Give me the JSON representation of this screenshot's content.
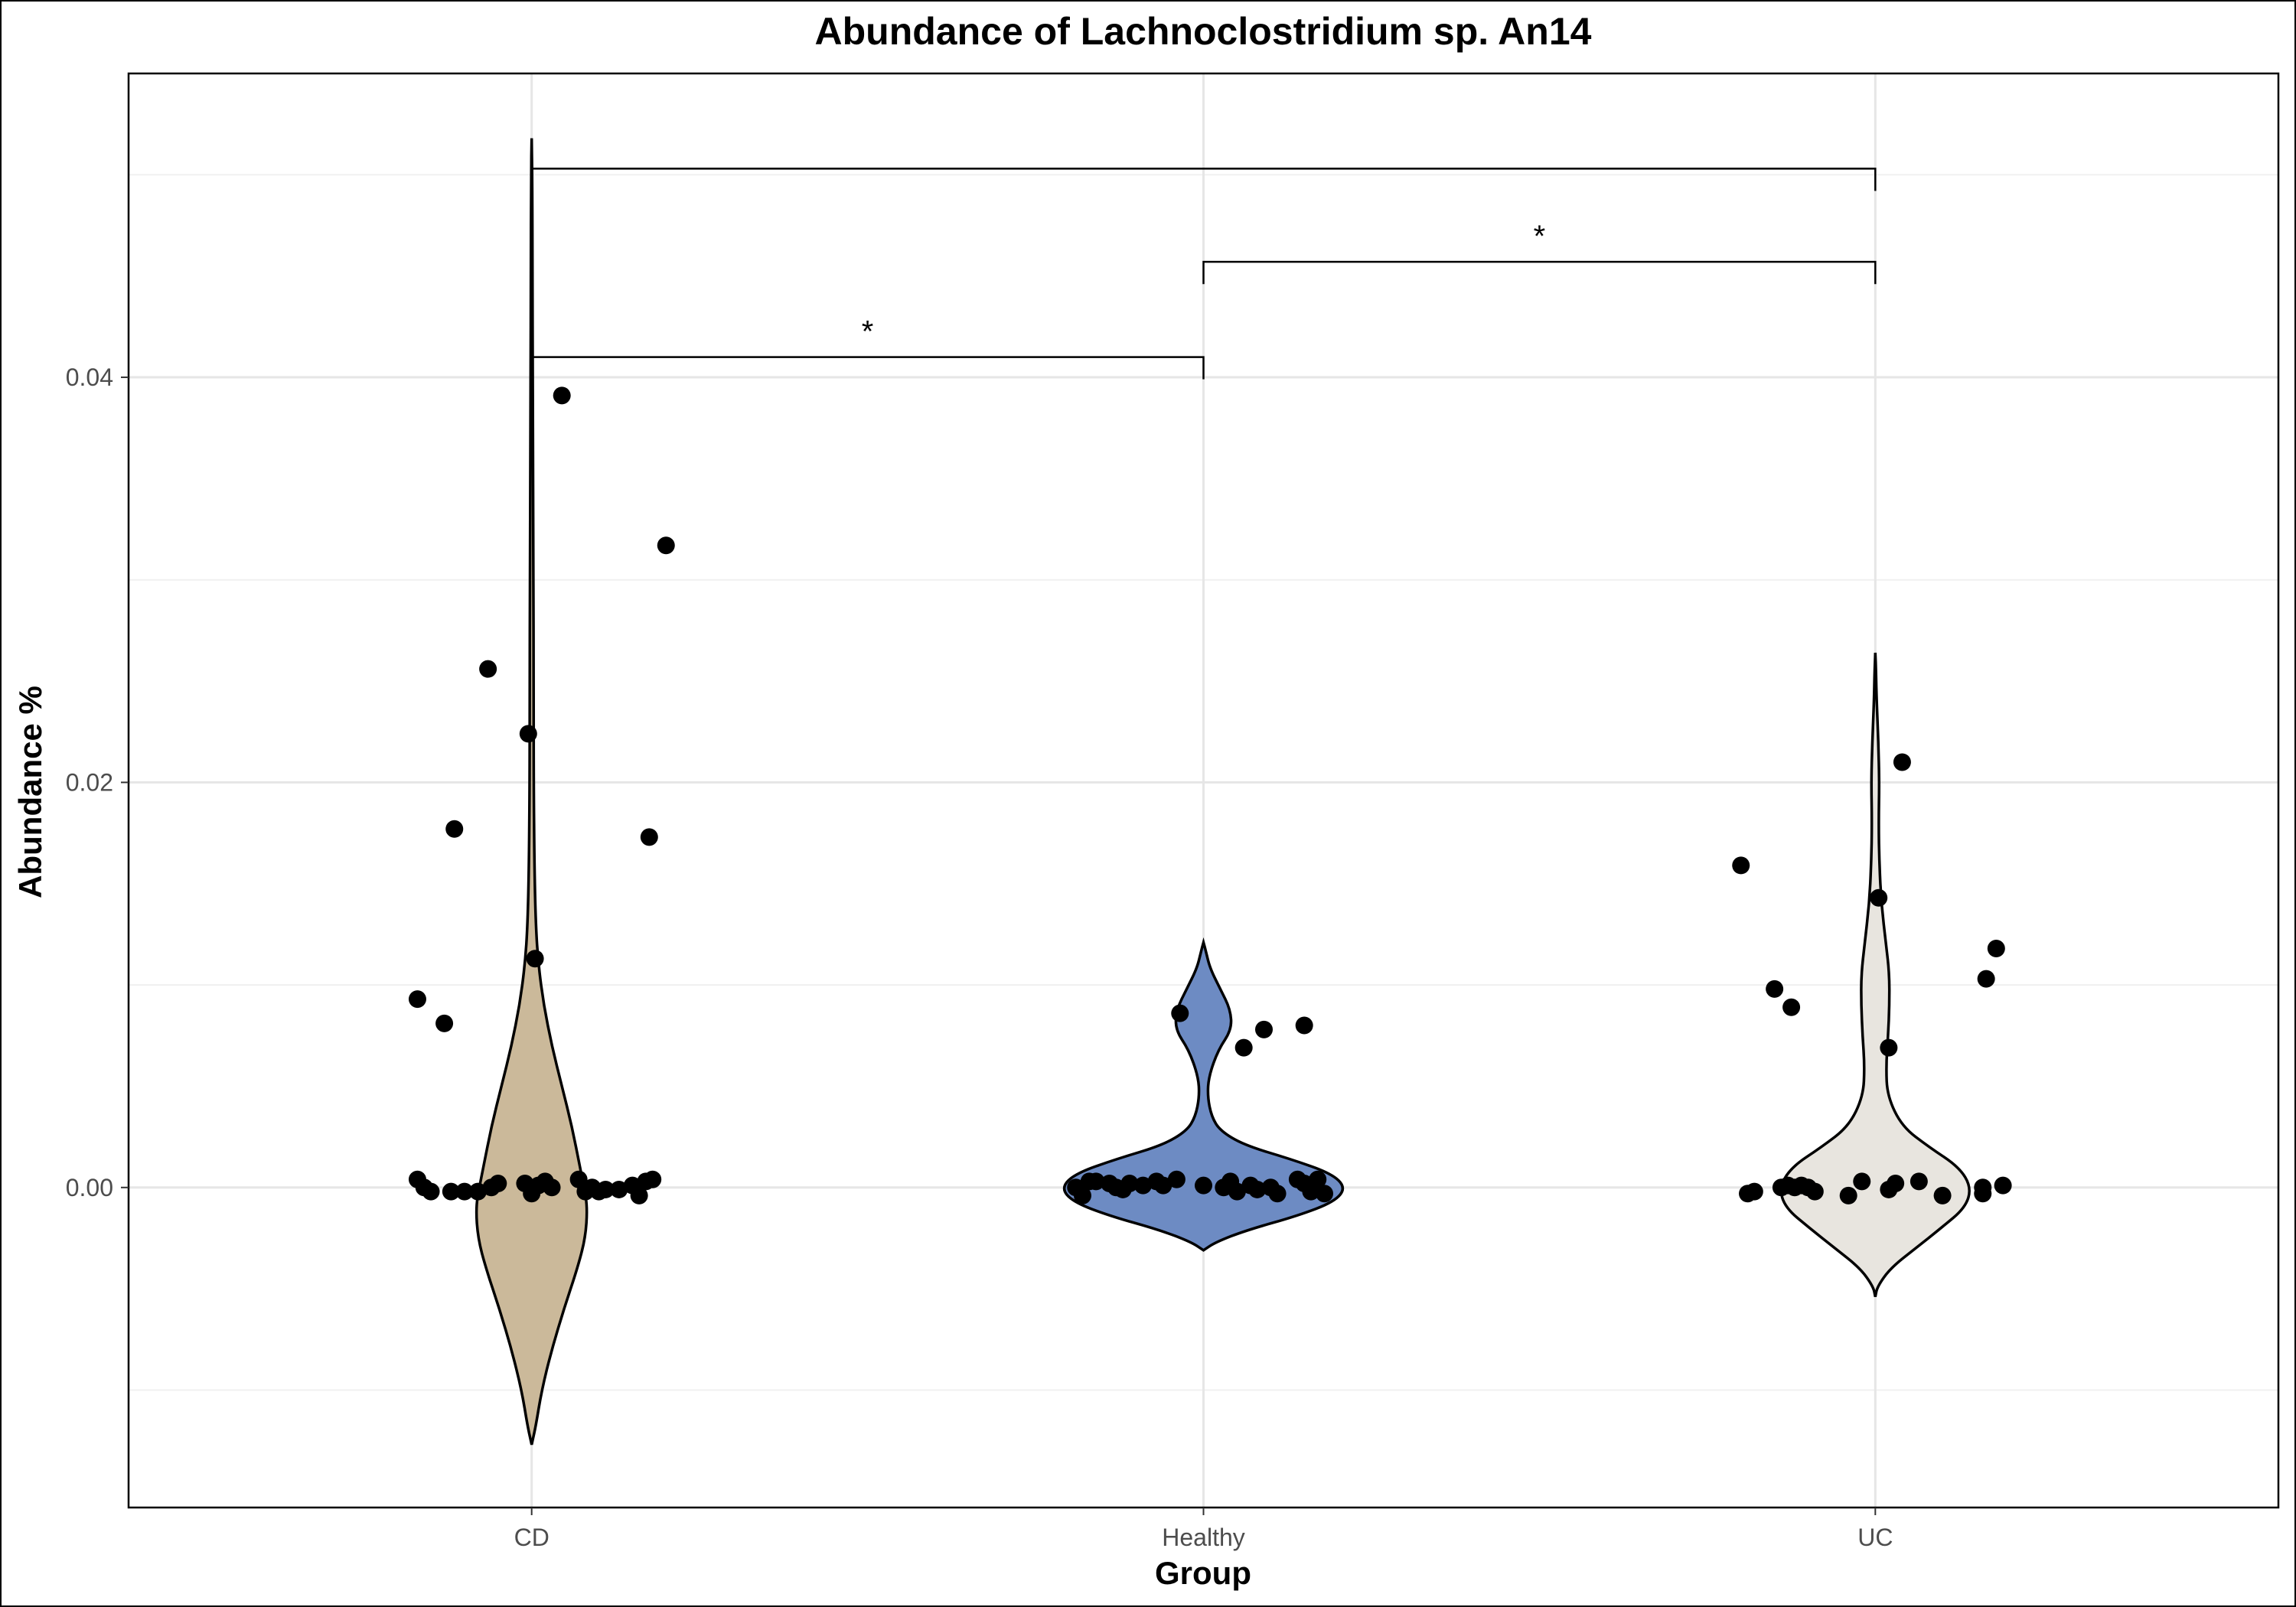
{
  "chart_data": {
    "type": "violin",
    "title": "Abundance of Lachnoclostridium sp. An14",
    "xlabel": "Group",
    "ylabel": "Abundance %",
    "categories": [
      "CD",
      "Healthy",
      "UC"
    ],
    "ylim": [
      -0.0158,
      0.055
    ],
    "yticks": [
      0.0,
      0.02,
      0.04
    ],
    "ytick_labels": [
      "0.00",
      "0.02",
      "0.04"
    ],
    "grid": true,
    "colors": {
      "CD": "#cbb99a",
      "Healthy": "#6d8bc3",
      "UC": "#e8e5df"
    },
    "violins": [
      {
        "group": "CD",
        "ymin": -0.0127,
        "ymax": 0.0518,
        "profile": [
          [
            -0.0127,
            0.0
          ],
          [
            -0.0118,
            0.006
          ],
          [
            -0.01,
            0.015
          ],
          [
            -0.008,
            0.03
          ],
          [
            -0.006,
            0.048
          ],
          [
            -0.004,
            0.068
          ],
          [
            -0.0025,
            0.08
          ],
          [
            -0.001,
            0.083
          ],
          [
            0.0,
            0.078
          ],
          [
            0.001,
            0.072
          ],
          [
            0.003,
            0.06
          ],
          [
            0.005,
            0.045
          ],
          [
            0.007,
            0.03
          ],
          [
            0.009,
            0.018
          ],
          [
            0.011,
            0.01
          ],
          [
            0.013,
            0.006
          ],
          [
            0.016,
            0.004
          ],
          [
            0.02,
            0.003
          ],
          [
            0.025,
            0.003
          ],
          [
            0.03,
            0.0025
          ],
          [
            0.035,
            0.002
          ],
          [
            0.04,
            0.0016
          ],
          [
            0.045,
            0.0012
          ],
          [
            0.05,
            0.0008
          ],
          [
            0.0518,
            0.0
          ]
        ]
      },
      {
        "group": "Healthy",
        "ymin": -0.0031,
        "ymax": 0.0121,
        "profile": [
          [
            -0.0031,
            0.0
          ],
          [
            -0.0027,
            0.018
          ],
          [
            -0.0021,
            0.065
          ],
          [
            -0.0014,
            0.14
          ],
          [
            -0.0007,
            0.195
          ],
          [
            0.0,
            0.212
          ],
          [
            0.0007,
            0.19
          ],
          [
            0.0014,
            0.13
          ],
          [
            0.0021,
            0.06
          ],
          [
            0.0028,
            0.025
          ],
          [
            0.0035,
            0.012
          ],
          [
            0.0045,
            0.006
          ],
          [
            0.0055,
            0.008
          ],
          [
            0.0068,
            0.022
          ],
          [
            0.0078,
            0.042
          ],
          [
            0.0088,
            0.04
          ],
          [
            0.0098,
            0.025
          ],
          [
            0.0108,
            0.01
          ],
          [
            0.0116,
            0.004
          ],
          [
            0.0121,
            0.0
          ]
        ]
      },
      {
        "group": "UC",
        "ymin": -0.0054,
        "ymax": 0.0264,
        "profile": [
          [
            -0.0054,
            0.0
          ],
          [
            -0.0049,
            0.003
          ],
          [
            -0.004,
            0.022
          ],
          [
            -0.003,
            0.06
          ],
          [
            -0.002,
            0.098
          ],
          [
            -0.001,
            0.134
          ],
          [
            0.0,
            0.143
          ],
          [
            0.001,
            0.125
          ],
          [
            0.002,
            0.08
          ],
          [
            0.003,
            0.04
          ],
          [
            0.0045,
            0.018
          ],
          [
            0.006,
            0.016
          ],
          [
            0.0075,
            0.019
          ],
          [
            0.009,
            0.021
          ],
          [
            0.0105,
            0.021
          ],
          [
            0.012,
            0.016
          ],
          [
            0.014,
            0.009
          ],
          [
            0.016,
            0.006
          ],
          [
            0.018,
            0.005
          ],
          [
            0.02,
            0.006
          ],
          [
            0.022,
            0.0045
          ],
          [
            0.024,
            0.002
          ],
          [
            0.0255,
            0.001
          ],
          [
            0.0264,
            0.0
          ]
        ]
      }
    ],
    "points": [
      {
        "group": "CD",
        "offset": -0.17,
        "y": 0.0004
      },
      {
        "group": "CD",
        "offset": -0.16,
        "y": 0.0
      },
      {
        "group": "CD",
        "offset": -0.15,
        "y": -0.0002
      },
      {
        "group": "CD",
        "offset": -0.12,
        "y": -0.0002
      },
      {
        "group": "CD",
        "offset": -0.1,
        "y": -0.0002
      },
      {
        "group": "CD",
        "offset": -0.08,
        "y": -0.0002
      },
      {
        "group": "CD",
        "offset": -0.06,
        "y": 0.0
      },
      {
        "group": "CD",
        "offset": -0.05,
        "y": 0.0002
      },
      {
        "group": "CD",
        "offset": -0.01,
        "y": 0.0002
      },
      {
        "group": "CD",
        "offset": 0.0,
        "y": -0.0003
      },
      {
        "group": "CD",
        "offset": 0.01,
        "y": 0.0001
      },
      {
        "group": "CD",
        "offset": 0.02,
        "y": 0.0003
      },
      {
        "group": "CD",
        "offset": 0.03,
        "y": 0.0
      },
      {
        "group": "CD",
        "offset": 0.07,
        "y": 0.0004
      },
      {
        "group": "CD",
        "offset": 0.08,
        "y": -0.0002
      },
      {
        "group": "CD",
        "offset": 0.09,
        "y": 0.0
      },
      {
        "group": "CD",
        "offset": 0.1,
        "y": -0.0002
      },
      {
        "group": "CD",
        "offset": 0.11,
        "y": -0.0001
      },
      {
        "group": "CD",
        "offset": 0.13,
        "y": -0.0001
      },
      {
        "group": "CD",
        "offset": 0.15,
        "y": 0.0001
      },
      {
        "group": "CD",
        "offset": 0.16,
        "y": -0.0004
      },
      {
        "group": "CD",
        "offset": 0.17,
        "y": 0.0003
      },
      {
        "group": "CD",
        "offset": 0.18,
        "y": 0.0004
      },
      {
        "group": "CD",
        "offset": 0.045,
        "y": 0.0391
      },
      {
        "group": "CD",
        "offset": 0.2,
        "y": 0.0317
      },
      {
        "group": "CD",
        "offset": -0.065,
        "y": 0.0256
      },
      {
        "group": "CD",
        "offset": -0.005,
        "y": 0.0224
      },
      {
        "group": "CD",
        "offset": -0.115,
        "y": 0.0177
      },
      {
        "group": "CD",
        "offset": 0.175,
        "y": 0.0173
      },
      {
        "group": "CD",
        "offset": 0.005,
        "y": 0.0113
      },
      {
        "group": "CD",
        "offset": -0.17,
        "y": 0.0093
      },
      {
        "group": "CD",
        "offset": -0.13,
        "y": 0.0081
      },
      {
        "group": "Healthy",
        "offset": -0.19,
        "y": 0.0
      },
      {
        "group": "Healthy",
        "offset": -0.18,
        "y": -0.0004
      },
      {
        "group": "Healthy",
        "offset": -0.17,
        "y": 0.0003
      },
      {
        "group": "Healthy",
        "offset": -0.16,
        "y": 0.0003
      },
      {
        "group": "Healthy",
        "offset": -0.14,
        "y": 0.0002
      },
      {
        "group": "Healthy",
        "offset": -0.13,
        "y": 0.0
      },
      {
        "group": "Healthy",
        "offset": -0.12,
        "y": -0.0001
      },
      {
        "group": "Healthy",
        "offset": -0.11,
        "y": 0.0002
      },
      {
        "group": "Healthy",
        "offset": -0.09,
        "y": 0.0001
      },
      {
        "group": "Healthy",
        "offset": -0.07,
        "y": 0.0003
      },
      {
        "group": "Healthy",
        "offset": -0.06,
        "y": 0.0001
      },
      {
        "group": "Healthy",
        "offset": -0.04,
        "y": 0.0004
      },
      {
        "group": "Healthy",
        "offset": 0.0,
        "y": 0.0001
      },
      {
        "group": "Healthy",
        "offset": 0.03,
        "y": 0.0
      },
      {
        "group": "Healthy",
        "offset": 0.04,
        "y": 0.0003
      },
      {
        "group": "Healthy",
        "offset": 0.05,
        "y": -0.0002
      },
      {
        "group": "Healthy",
        "offset": 0.07,
        "y": 0.0001
      },
      {
        "group": "Healthy",
        "offset": 0.08,
        "y": -0.0001
      },
      {
        "group": "Healthy",
        "offset": 0.1,
        "y": 0.0
      },
      {
        "group": "Healthy",
        "offset": 0.11,
        "y": -0.0003
      },
      {
        "group": "Healthy",
        "offset": 0.14,
        "y": 0.0004
      },
      {
        "group": "Healthy",
        "offset": 0.15,
        "y": 0.0002
      },
      {
        "group": "Healthy",
        "offset": 0.16,
        "y": -0.0002
      },
      {
        "group": "Healthy",
        "offset": 0.17,
        "y": 0.0004
      },
      {
        "group": "Healthy",
        "offset": 0.18,
        "y": -0.0003
      },
      {
        "group": "Healthy",
        "offset": -0.035,
        "y": 0.0086
      },
      {
        "group": "Healthy",
        "offset": 0.06,
        "y": 0.0069
      },
      {
        "group": "Healthy",
        "offset": 0.09,
        "y": 0.0078
      },
      {
        "group": "Healthy",
        "offset": 0.15,
        "y": 0.008
      },
      {
        "group": "UC",
        "offset": -0.19,
        "y": -0.0003
      },
      {
        "group": "UC",
        "offset": -0.18,
        "y": -0.0002
      },
      {
        "group": "UC",
        "offset": -0.14,
        "y": 0.0
      },
      {
        "group": "UC",
        "offset": -0.13,
        "y": 0.0001
      },
      {
        "group": "UC",
        "offset": -0.12,
        "y": 0.0
      },
      {
        "group": "UC",
        "offset": -0.11,
        "y": 0.0001
      },
      {
        "group": "UC",
        "offset": -0.1,
        "y": 0.0
      },
      {
        "group": "UC",
        "offset": -0.09,
        "y": -0.0002
      },
      {
        "group": "UC",
        "offset": -0.04,
        "y": -0.0004
      },
      {
        "group": "UC",
        "offset": -0.02,
        "y": 0.0003
      },
      {
        "group": "UC",
        "offset": 0.02,
        "y": -0.0001
      },
      {
        "group": "UC",
        "offset": 0.03,
        "y": 0.0002
      },
      {
        "group": "UC",
        "offset": 0.065,
        "y": 0.0003
      },
      {
        "group": "UC",
        "offset": 0.1,
        "y": -0.0004
      },
      {
        "group": "UC",
        "offset": 0.16,
        "y": 0.0
      },
      {
        "group": "UC",
        "offset": 0.16,
        "y": -0.0003
      },
      {
        "group": "UC",
        "offset": 0.19,
        "y": 0.0001
      },
      {
        "group": "UC",
        "offset": 0.04,
        "y": 0.021
      },
      {
        "group": "UC",
        "offset": -0.2,
        "y": 0.0159
      },
      {
        "group": "UC",
        "offset": 0.005,
        "y": 0.0143
      },
      {
        "group": "UC",
        "offset": 0.18,
        "y": 0.0118
      },
      {
        "group": "UC",
        "offset": 0.165,
        "y": 0.0103
      },
      {
        "group": "UC",
        "offset": -0.15,
        "y": 0.0098
      },
      {
        "group": "UC",
        "offset": -0.125,
        "y": 0.0089
      },
      {
        "group": "UC",
        "offset": 0.02,
        "y": 0.0069
      }
    ],
    "significance": [
      {
        "from": "CD",
        "to": "Healthy",
        "y": 0.041,
        "tick_bottom": 0.0399,
        "label": "*"
      },
      {
        "from": "Healthy",
        "to": "UC",
        "y": 0.0457,
        "tick_bottom": 0.0446,
        "label": "*"
      },
      {
        "from": "CD",
        "to": "UC",
        "y": 0.0503,
        "tick_bottom": 0.0492,
        "label": ""
      }
    ]
  }
}
